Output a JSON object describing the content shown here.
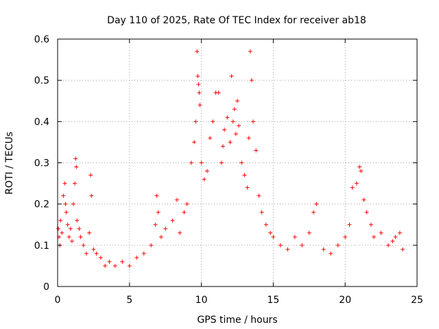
{
  "chart_data": {
    "type": "scatter",
    "title": "Day 110 of 2025, Rate Of TEC Index for receiver ab18",
    "xlabel": "GPS time / hours",
    "ylabel": "ROTI / TECUs",
    "xlim": [
      0,
      25
    ],
    "ylim": [
      0,
      0.6
    ],
    "xticks": [
      0,
      5,
      10,
      15,
      20,
      25
    ],
    "yticks": [
      0,
      0.1,
      0.2,
      0.3,
      0.4,
      0.5,
      0.6
    ],
    "xtick_labels": [
      "0",
      "5",
      "10",
      "15",
      "20",
      "25"
    ],
    "ytick_labels": [
      "0",
      "0.1",
      "0.2",
      "0.3",
      "0.4",
      "0.5",
      "0.6"
    ],
    "grid": true,
    "marker": "plus",
    "color": "#ff0000",
    "series": [
      {
        "x": [
          0.05,
          0.1,
          0.15,
          0.2,
          0.3,
          0.4,
          0.5,
          0.55,
          0.6,
          0.7,
          0.8,
          0.9,
          1.0,
          1.1,
          1.2,
          1.25,
          1.3,
          1.35,
          1.5,
          1.6,
          1.8,
          2.0,
          2.2,
          2.3,
          2.35,
          2.5,
          2.7,
          3.0,
          3.3,
          3.6,
          4.0,
          4.5,
          5.0,
          5.5,
          6.0,
          6.5,
          6.8,
          6.9,
          7.0,
          7.2,
          7.5,
          8.0,
          8.3,
          8.5,
          8.8,
          9.0,
          9.3,
          9.5,
          9.6,
          9.7,
          9.75,
          9.8,
          9.85,
          9.9,
          10.0,
          10.2,
          10.4,
          10.6,
          10.8,
          11.0,
          11.2,
          11.4,
          11.5,
          11.6,
          11.8,
          12.0,
          12.1,
          12.2,
          12.3,
          12.4,
          12.5,
          12.6,
          12.8,
          13.0,
          13.2,
          13.3,
          13.4,
          13.5,
          13.6,
          13.8,
          14.0,
          14.2,
          14.5,
          14.8,
          15.0,
          15.5,
          16.0,
          16.5,
          17.0,
          17.5,
          17.8,
          18.0,
          18.5,
          19.0,
          19.5,
          20.0,
          20.3,
          20.5,
          20.8,
          21.0,
          21.1,
          21.3,
          21.5,
          21.8,
          22.0,
          22.5,
          23.0,
          23.3,
          23.5,
          23.8,
          24.0
        ],
        "y": [
          0.14,
          0.12,
          0.1,
          0.16,
          0.13,
          0.22,
          0.25,
          0.2,
          0.18,
          0.15,
          0.12,
          0.14,
          0.11,
          0.2,
          0.25,
          0.31,
          0.29,
          0.16,
          0.14,
          0.12,
          0.1,
          0.08,
          0.13,
          0.27,
          0.22,
          0.09,
          0.08,
          0.07,
          0.05,
          0.06,
          0.05,
          0.06,
          0.05,
          0.07,
          0.08,
          0.1,
          0.15,
          0.22,
          0.18,
          0.12,
          0.14,
          0.16,
          0.21,
          0.13,
          0.18,
          0.2,
          0.3,
          0.35,
          0.4,
          0.57,
          0.51,
          0.49,
          0.47,
          0.44,
          0.3,
          0.26,
          0.28,
          0.36,
          0.4,
          0.47,
          0.47,
          0.3,
          0.34,
          0.38,
          0.41,
          0.35,
          0.51,
          0.4,
          0.43,
          0.37,
          0.45,
          0.39,
          0.3,
          0.27,
          0.24,
          0.36,
          0.57,
          0.5,
          0.4,
          0.33,
          0.22,
          0.18,
          0.15,
          0.13,
          0.12,
          0.1,
          0.09,
          0.12,
          0.1,
          0.13,
          0.18,
          0.2,
          0.09,
          0.08,
          0.1,
          0.12,
          0.15,
          0.24,
          0.25,
          0.29,
          0.28,
          0.21,
          0.18,
          0.15,
          0.12,
          0.13,
          0.1,
          0.11,
          0.12,
          0.13,
          0.09
        ]
      }
    ]
  }
}
